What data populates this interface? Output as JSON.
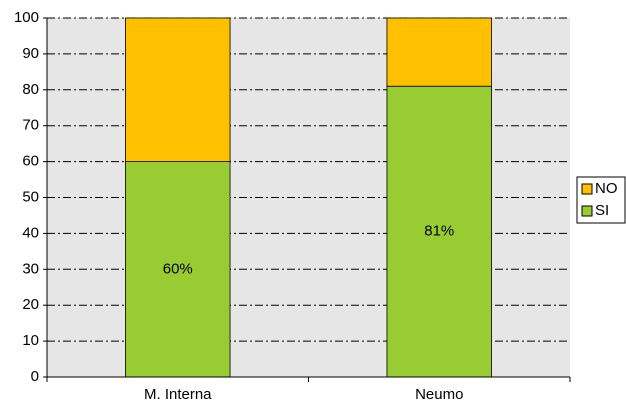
{
  "chart_data": {
    "type": "stacked_bar",
    "categories": [
      "M. Interna",
      "Neumo"
    ],
    "series": [
      {
        "name": "SI",
        "color": "#99cc33",
        "values": [
          60,
          81
        ],
        "value_labels": [
          "60%",
          "81%"
        ]
      },
      {
        "name": "NO",
        "color": "#ffc000",
        "values": [
          40,
          19
        ]
      }
    ],
    "ylim": [
      0,
      100
    ],
    "yticks": [
      0,
      10,
      20,
      30,
      40,
      50,
      60,
      70,
      80,
      90,
      100
    ],
    "grid": true,
    "legend": "right"
  }
}
